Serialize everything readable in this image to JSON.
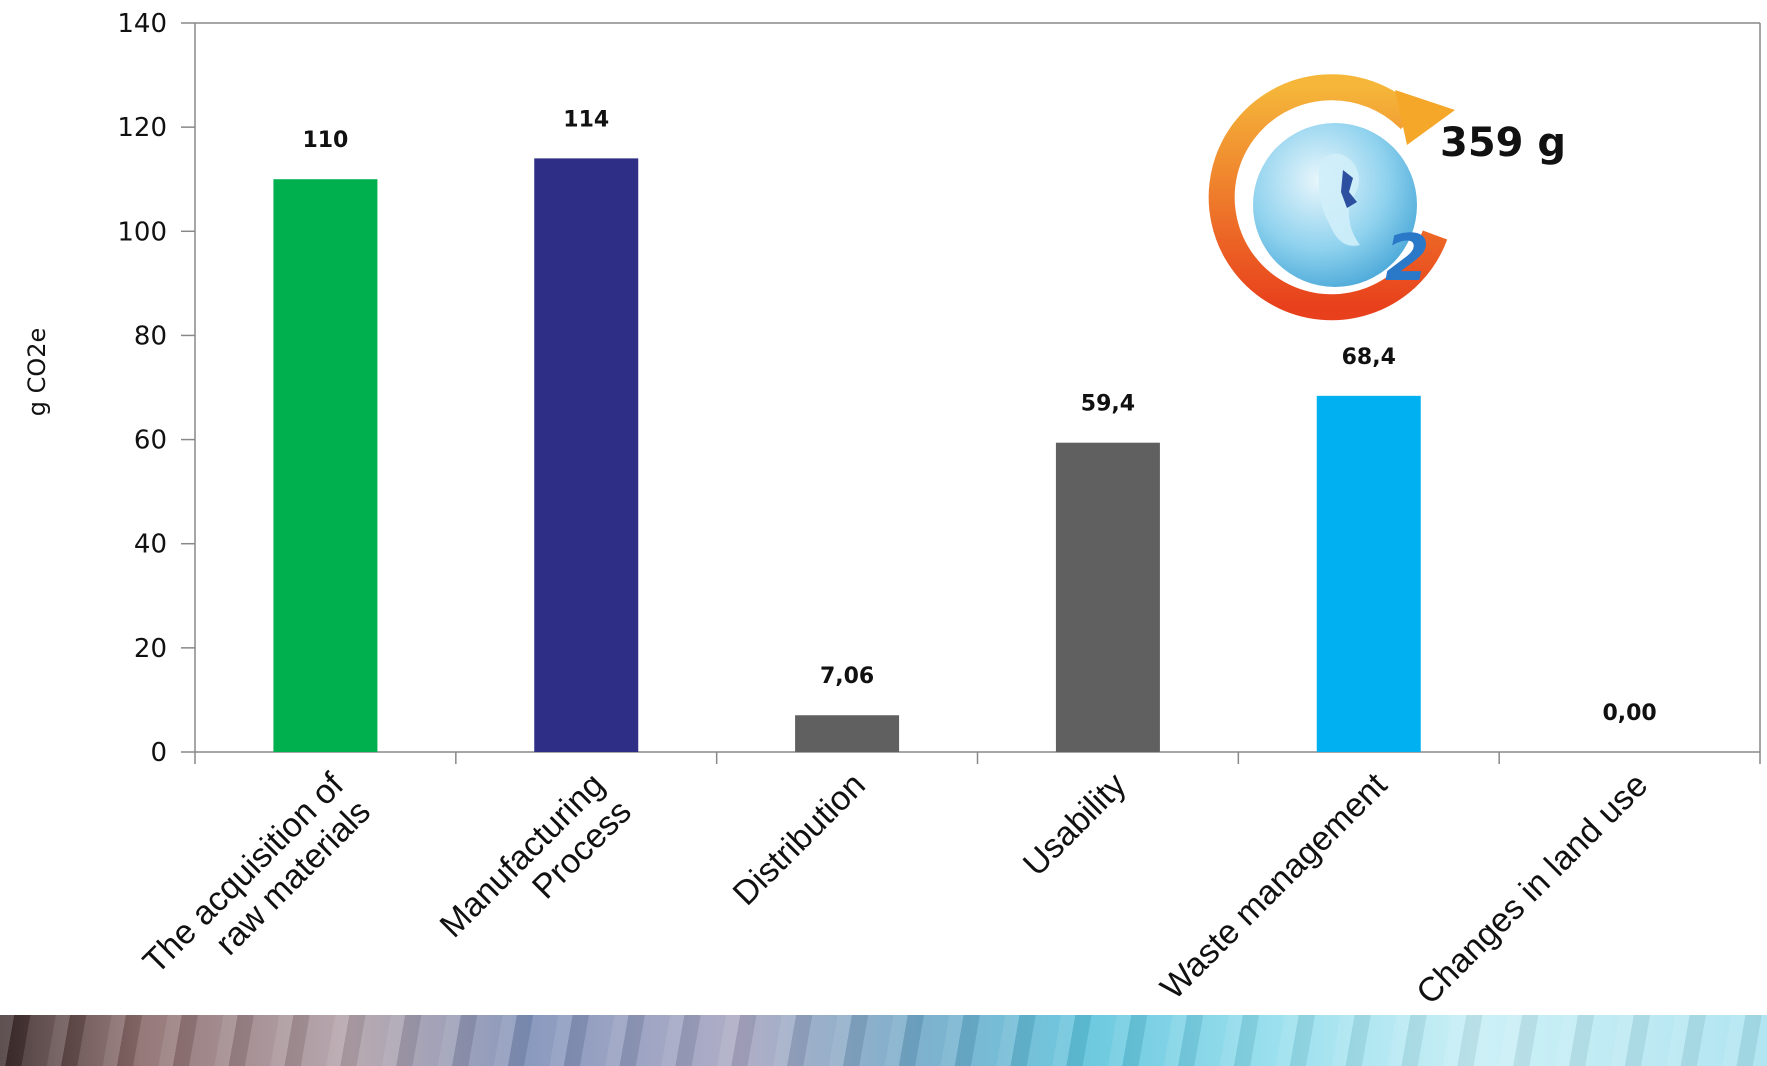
{
  "chart_data": {
    "type": "bar",
    "categories": [
      [
        "The acquisition of",
        "raw materials"
      ],
      [
        "Manufacturing",
        "Process"
      ],
      [
        "Distribution"
      ],
      [
        "Usability"
      ],
      [
        "Waste management"
      ],
      [
        "Changes in land use"
      ]
    ],
    "values": [
      110,
      114,
      7.06,
      59.4,
      68.4,
      0.0
    ],
    "value_labels": [
      "110",
      "114",
      "7,06",
      "59,4",
      "68,4",
      "0,00"
    ],
    "bar_colors": [
      "#00b04f",
      "#2e2e86",
      "#606060",
      "#606060",
      "#00b0f0",
      "#606060"
    ],
    "ylabel": "g CO2e",
    "ylim": [
      0,
      140
    ],
    "yticks": [
      0,
      20,
      40,
      60,
      80,
      100,
      120,
      140
    ],
    "grid": false,
    "legend": "none"
  },
  "badge": {
    "total": "359 g",
    "icon": "co2-globe-icon",
    "subscript": "2"
  }
}
